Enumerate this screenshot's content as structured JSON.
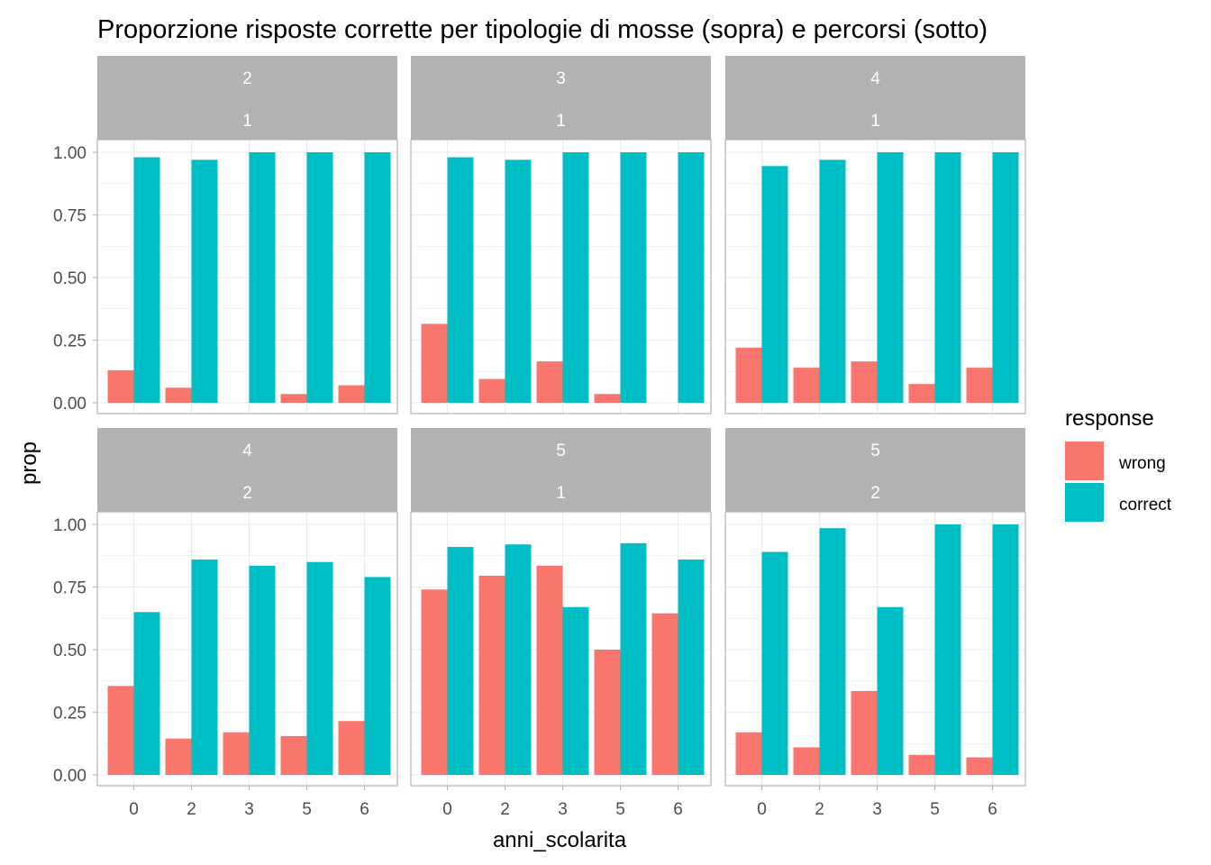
{
  "chart_data": {
    "type": "bar",
    "title": "Proporzione risposte corrette per tipologie di mosse (sopra) e percorsi (sotto)",
    "xlabel": "anni_scolarita",
    "ylabel": "prop",
    "ylim": [
      0,
      1
    ],
    "yticks": [
      "0.00",
      "0.25",
      "0.50",
      "0.75",
      "1.00"
    ],
    "categories": [
      "0",
      "2",
      "3",
      "5",
      "6"
    ],
    "legend": {
      "title": "response",
      "position": "right",
      "entries": [
        {
          "name": "wrong",
          "color": "#F8766D"
        },
        {
          "name": "correct",
          "color": "#00BFC4"
        }
      ]
    },
    "grid": true,
    "strip_color": "#b3b3b3",
    "panels": [
      {
        "strip_top": "2",
        "strip_bottom": "1",
        "series": [
          {
            "name": "wrong",
            "values": [
              0.13,
              0.06,
              0,
              0.035,
              0.07
            ]
          },
          {
            "name": "correct",
            "values": [
              0.98,
              0.97,
              1.0,
              1.0,
              1.0
            ]
          }
        ]
      },
      {
        "strip_top": "3",
        "strip_bottom": "1",
        "series": [
          {
            "name": "wrong",
            "values": [
              0.315,
              0.095,
              0.165,
              0.035,
              0
            ]
          },
          {
            "name": "correct",
            "values": [
              0.98,
              0.97,
              1.0,
              1.0,
              1.0
            ]
          }
        ]
      },
      {
        "strip_top": "4",
        "strip_bottom": "1",
        "series": [
          {
            "name": "wrong",
            "values": [
              0.22,
              0.14,
              0.165,
              0.075,
              0.14
            ]
          },
          {
            "name": "correct",
            "values": [
              0.945,
              0.97,
              1.0,
              1.0,
              1.0
            ]
          }
        ]
      },
      {
        "strip_top": "4",
        "strip_bottom": "2",
        "series": [
          {
            "name": "wrong",
            "values": [
              0.355,
              0.145,
              0.17,
              0.155,
              0.215
            ]
          },
          {
            "name": "correct",
            "values": [
              0.65,
              0.86,
              0.835,
              0.85,
              0.79
            ]
          }
        ]
      },
      {
        "strip_top": "5",
        "strip_bottom": "1",
        "series": [
          {
            "name": "wrong",
            "values": [
              0.74,
              0.795,
              0.835,
              0.5,
              0.645
            ]
          },
          {
            "name": "correct",
            "values": [
              0.91,
              0.92,
              0.67,
              0.925,
              0.86
            ]
          }
        ]
      },
      {
        "strip_top": "5",
        "strip_bottom": "2",
        "series": [
          {
            "name": "wrong",
            "values": [
              0.17,
              0.11,
              0.335,
              0.08,
              0.07
            ]
          },
          {
            "name": "correct",
            "values": [
              0.89,
              0.985,
              0.67,
              1.0,
              1.0
            ]
          }
        ]
      }
    ]
  }
}
